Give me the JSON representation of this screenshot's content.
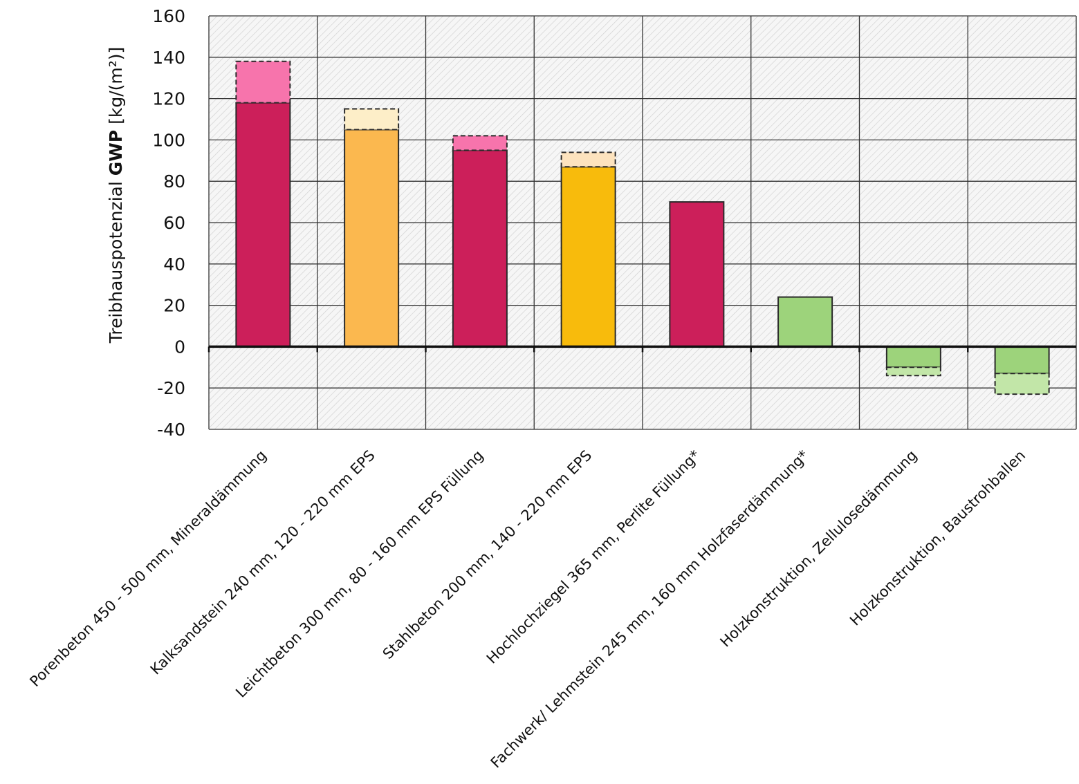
{
  "chart_data": {
    "type": "bar",
    "ylabel_regular": "Treibhauspotenzial ",
    "ylabel_bold": "GWP",
    "ylabel_unit": " [kg/(m²)]",
    "ylim": [
      -40,
      160
    ],
    "yticks": [
      -40,
      -20,
      0,
      20,
      40,
      60,
      80,
      100,
      120,
      140,
      160
    ],
    "grid": true,
    "categories": [
      "Porenbeton 450 - 500 mm, Mineraldämmung",
      "Kalksandstein 240 mm, 120 - 220 mm EPS",
      "Leichtbeton 300 mm, 80 - 160 mm EPS Füllung",
      "Stahlbeton 200 mm, 140 - 220 mm EPS",
      "Hochlochziegel 365 mm, Perlite Füllung*",
      "Fachwerk/ Lehmstein 245 mm, 160 mm Holzfaserdämmung*",
      "Holzkonstruktion, Zellulosedämmung",
      "Holzkonstruktion, Baustrohballen"
    ],
    "series": [
      {
        "values": [
          118,
          105,
          95,
          87,
          70,
          24,
          -10,
          -13
        ]
      },
      {
        "values": [
          20,
          10,
          7,
          7,
          0,
          0,
          -4,
          -10
        ]
      }
    ],
    "colors": {
      "base": [
        "#cc1f5a",
        "#fbb84f",
        "#cc1f5a",
        "#f8bb0c",
        "#cc1f5a",
        "#9dd37b",
        "#9dd37b",
        "#9dd37b"
      ],
      "range": [
        "#f774ac",
        "#fdeec8",
        "#f774ac",
        "#fde3be",
        null,
        null,
        "#c2e6a8",
        "#c2e6a8"
      ],
      "plot_background": "#f6f6f6",
      "hatch": "#d2d2d2",
      "grid": "#333333"
    }
  }
}
